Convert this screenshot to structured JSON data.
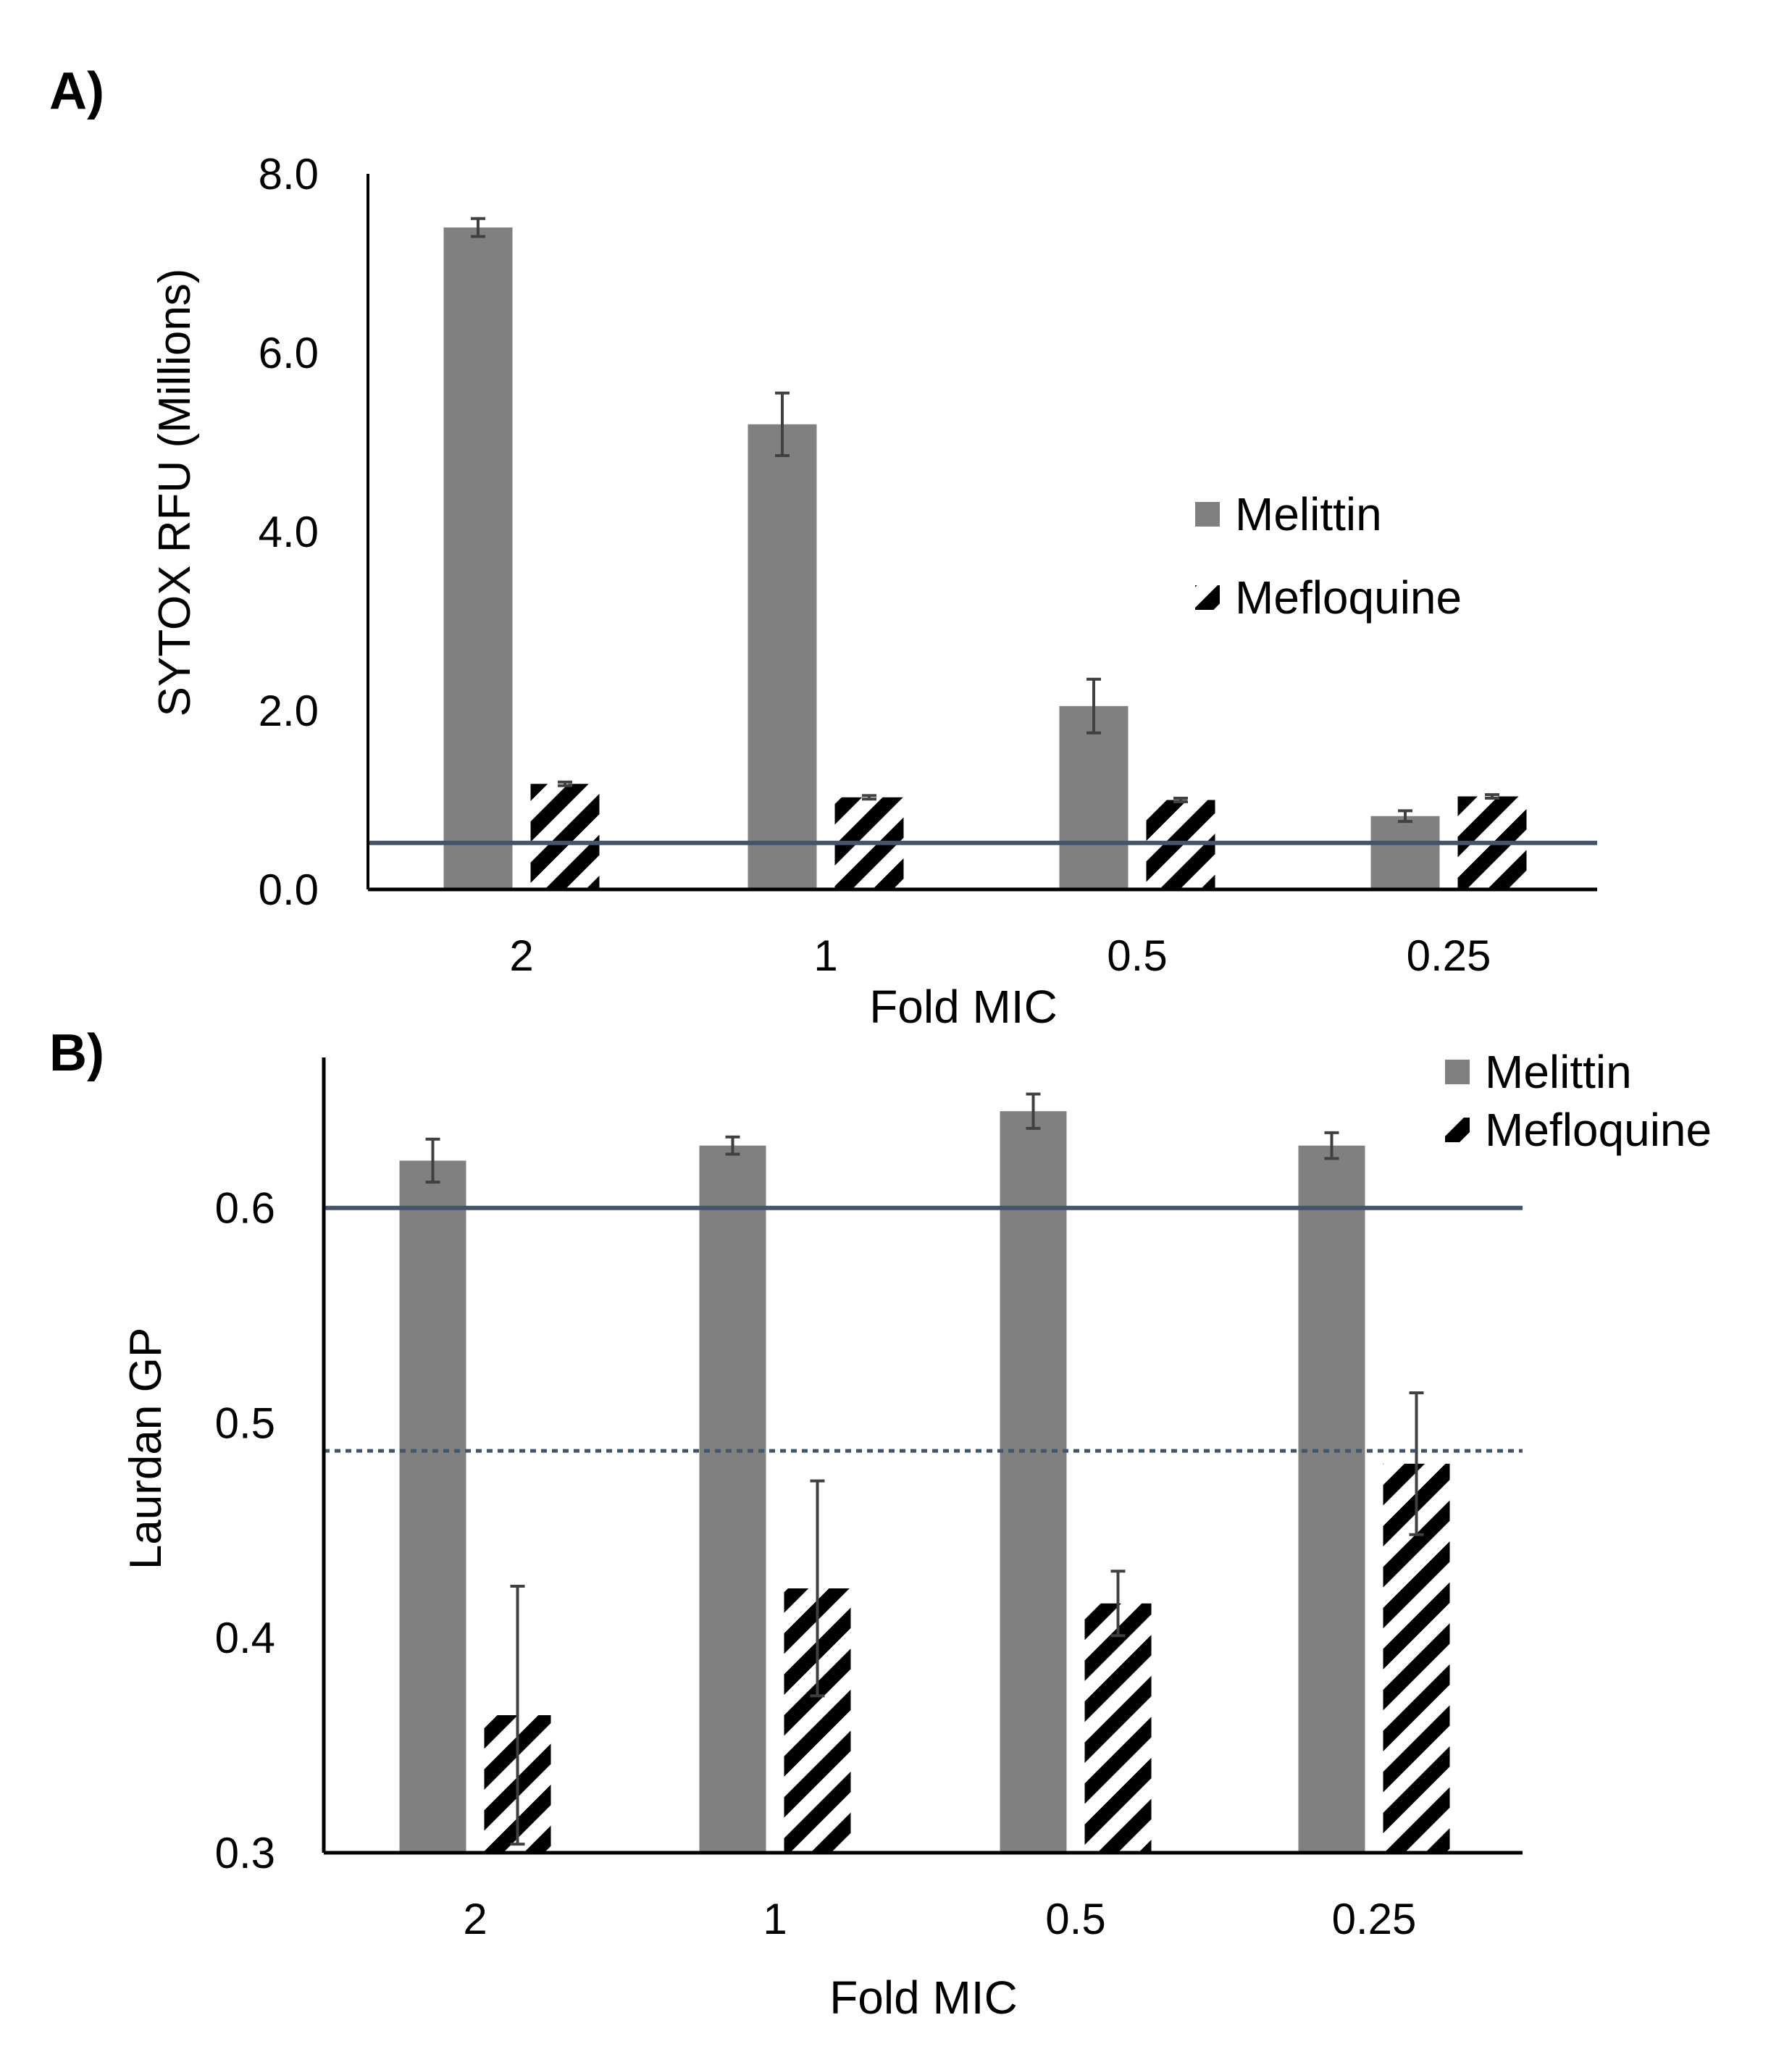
{
  "colors": {
    "melittin": "#808080",
    "hatch": "#000000",
    "axis": "#000000",
    "error_bar": "#404040",
    "reference_line": "#44546a"
  },
  "chart_data": [
    {
      "panel_label": "A)",
      "type": "bar",
      "title": "",
      "xlabel": "Fold MIC",
      "ylabel": "SYTOX RFU (Millions)",
      "categories": [
        "2",
        "1",
        "0.5",
        "0.25"
      ],
      "ylim": [
        0,
        8
      ],
      "yticks": [
        0,
        2,
        4,
        6,
        8
      ],
      "ytick_labels": [
        "0.0",
        "2.0",
        "4.0",
        "6.0",
        "8.0"
      ],
      "series": [
        {
          "name": "Melittin",
          "pattern": "solid",
          "values": [
            7.4,
            5.2,
            2.05,
            0.82
          ],
          "errors": [
            0.1,
            0.35,
            0.3,
            0.06
          ]
        },
        {
          "name": "Mefloquine",
          "pattern": "hatched",
          "values": [
            1.18,
            1.03,
            1.0,
            1.04
          ],
          "errors": [
            0.02,
            0.02,
            0.02,
            0.02
          ]
        }
      ],
      "reference_lines": [
        {
          "value": 0.52,
          "style": "solid"
        }
      ],
      "legend_position": "right-middle",
      "grid": false
    },
    {
      "panel_label": "B)",
      "type": "bar",
      "title": "",
      "xlabel": "Fold MIC",
      "ylabel": "Laurdan GP",
      "categories": [
        "2",
        "1",
        "0.5",
        "0.25"
      ],
      "ylim": [
        0.3,
        0.67
      ],
      "yticks": [
        0.3,
        0.4,
        0.5,
        0.6
      ],
      "ytick_labels": [
        "0.3",
        "0.4",
        "0.5",
        "0.6"
      ],
      "series": [
        {
          "name": "Melittin",
          "pattern": "solid",
          "values": [
            0.622,
            0.629,
            0.645,
            0.629
          ],
          "errors": [
            0.01,
            0.004,
            0.008,
            0.006
          ]
        },
        {
          "name": "Mefloquine",
          "pattern": "hatched",
          "values": [
            0.364,
            0.423,
            0.416,
            0.481
          ],
          "errors": [
            0.06,
            0.05,
            0.015,
            0.033
          ]
        }
      ],
      "reference_lines": [
        {
          "value": 0.6,
          "style": "solid"
        },
        {
          "value": 0.487,
          "style": "dotted"
        }
      ],
      "legend_position": "top-right",
      "grid": false
    }
  ]
}
